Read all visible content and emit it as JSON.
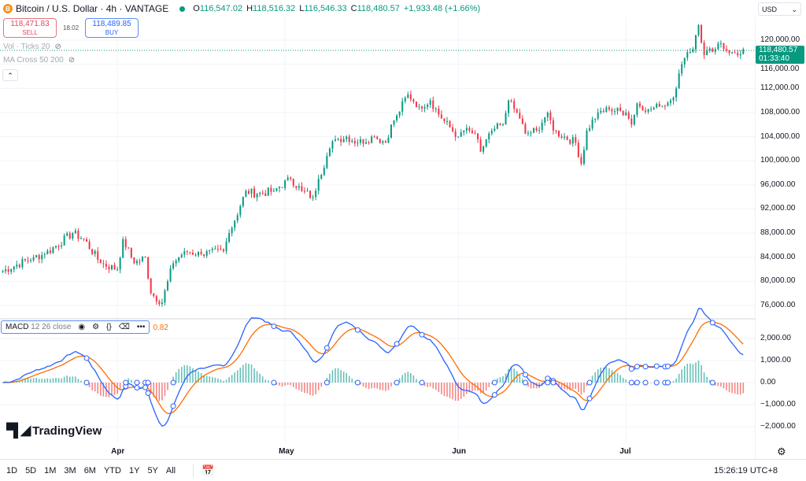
{
  "header": {
    "symbol": "Bitcoin / U.S. Dollar · 4h · VANTAGE",
    "coin_glyph": "B",
    "open_label": "O",
    "open": "116,547.02",
    "high_label": "H",
    "high": "118,516.32",
    "low_label": "L",
    "low": "116,546.33",
    "close_label": "C",
    "close": "118,480.57",
    "change": "+1,933.48 (+1.66%)"
  },
  "trade": {
    "sell_price": "118,471.83",
    "sell_label": "SELL",
    "spread": "18.02",
    "buy_price": "118,489.85",
    "buy_label": "BUY"
  },
  "indicators": [
    {
      "label": "Vol · Ticks 20"
    },
    {
      "label": "MA Cross 50 200"
    }
  ],
  "macd": {
    "name": "MACD",
    "params": "12 26 close",
    "value_tail": "0.82"
  },
  "currency": "USD",
  "current_price": {
    "price": "118,480.57",
    "countdown": "01:33:40"
  },
  "colors": {
    "up": "#089981",
    "down": "#f23645",
    "macd": "#2962ff",
    "signal": "#ff6d00",
    "hist_up": "#26a69a",
    "hist_down": "#ef5350"
  },
  "chart_data": {
    "type": "candlestick",
    "title": "Bitcoin / U.S. Dollar · 4h · VANTAGE",
    "price_ticks": [
      "120,000.00",
      "116,000.00",
      "112,000.00",
      "108,000.00",
      "104,000.00",
      "100,000.00",
      "96,000.00",
      "92,000.00",
      "88,000.00",
      "84,000.00",
      "80,000.00",
      "76,000.00"
    ],
    "price_tick_values": [
      120000,
      116000,
      112000,
      108000,
      104000,
      100000,
      96000,
      92000,
      88000,
      84000,
      80000,
      76000
    ],
    "ylim": [
      74500,
      123500
    ],
    "macd_ticks": [
      "2,000.00",
      "1,000.00",
      "0.00",
      "−1,000.00",
      "−2,000.00"
    ],
    "macd_tick_values": [
      2000,
      1000,
      0,
      -1000,
      -2000
    ],
    "x_ticks": [
      "Apr",
      "May",
      "Jun",
      "Jul"
    ],
    "x_tick_dates": [
      "2025-04-01",
      "2025-05-01",
      "2025-06-01",
      "2025-07-01"
    ],
    "closes": [
      [
        "2025-03-11",
        81500
      ],
      [
        "2025-03-17",
        84000
      ],
      [
        "2025-03-19",
        84500
      ],
      [
        "2025-03-24",
        88000
      ],
      [
        "2025-03-26",
        87000
      ],
      [
        "2025-03-29",
        83000
      ],
      [
        "2025-04-01",
        82000
      ],
      [
        "2025-04-02",
        87000
      ],
      [
        "2025-04-04",
        83000
      ],
      [
        "2025-04-06",
        84000
      ],
      [
        "2025-04-07",
        78000
      ],
      [
        "2025-04-09",
        76500
      ],
      [
        "2025-04-10",
        80000
      ],
      [
        "2025-04-11",
        83000
      ],
      [
        "2025-04-13",
        85000
      ],
      [
        "2025-04-16",
        84500
      ],
      [
        "2025-04-20",
        85000
      ],
      [
        "2025-04-21",
        88000
      ],
      [
        "2025-04-23",
        92500
      ],
      [
        "2025-04-24",
        95000
      ],
      [
        "2025-04-26",
        94500
      ],
      [
        "2025-04-29",
        95000
      ],
      [
        "2025-05-02",
        97000
      ],
      [
        "2025-05-04",
        95000
      ],
      [
        "2025-05-06",
        94000
      ],
      [
        "2025-05-07",
        97000
      ],
      [
        "2025-05-09",
        102000
      ],
      [
        "2025-05-10",
        103500
      ],
      [
        "2025-05-12",
        104000
      ],
      [
        "2025-05-14",
        103000
      ],
      [
        "2025-05-17",
        104000
      ],
      [
        "2025-05-19",
        103000
      ],
      [
        "2025-05-20",
        106000
      ],
      [
        "2025-05-21",
        107500
      ],
      [
        "2025-05-23",
        111000
      ],
      [
        "2025-05-25",
        109000
      ],
      [
        "2025-05-27",
        110000
      ],
      [
        "2025-05-29",
        107000
      ],
      [
        "2025-06-01",
        104000
      ],
      [
        "2025-06-02",
        105000
      ],
      [
        "2025-06-04",
        104500
      ],
      [
        "2025-06-05",
        101500
      ],
      [
        "2025-06-07",
        105000
      ],
      [
        "2025-06-09",
        106000
      ],
      [
        "2025-06-10",
        110000
      ],
      [
        "2025-06-12",
        107000
      ],
      [
        "2025-06-13",
        104500
      ],
      [
        "2025-06-15",
        105000
      ],
      [
        "2025-06-17",
        108000
      ],
      [
        "2025-06-18",
        105000
      ],
      [
        "2025-06-20",
        104000
      ],
      [
        "2025-06-22",
        103000
      ],
      [
        "2025-06-23",
        99500
      ],
      [
        "2025-06-24",
        105000
      ],
      [
        "2025-06-26",
        108000
      ],
      [
        "2025-06-28",
        108500
      ],
      [
        "2025-07-01",
        108000
      ],
      [
        "2025-07-02",
        106000
      ],
      [
        "2025-07-03",
        109500
      ],
      [
        "2025-07-05",
        108500
      ],
      [
        "2025-07-07",
        109000
      ],
      [
        "2025-07-09",
        110000
      ],
      [
        "2025-07-10",
        112000
      ],
      [
        "2025-07-11",
        116000
      ],
      [
        "2025-07-12",
        118000
      ],
      [
        "2025-07-13",
        118500
      ],
      [
        "2025-07-14",
        122500
      ],
      [
        "2025-07-15",
        117500
      ],
      [
        "2025-07-17",
        118500
      ],
      [
        "2025-07-18",
        119500
      ],
      [
        "2025-07-20",
        118000
      ],
      [
        "2025-07-21",
        117500
      ],
      [
        "2025-07-22",
        118480.57
      ]
    ],
    "grid": true
  },
  "bottom": {
    "ranges": [
      "1D",
      "5D",
      "1M",
      "3M",
      "6M",
      "YTD",
      "1Y",
      "5Y",
      "All"
    ],
    "clock": "15:26:19 UTC+8"
  },
  "brand": "TradingView"
}
